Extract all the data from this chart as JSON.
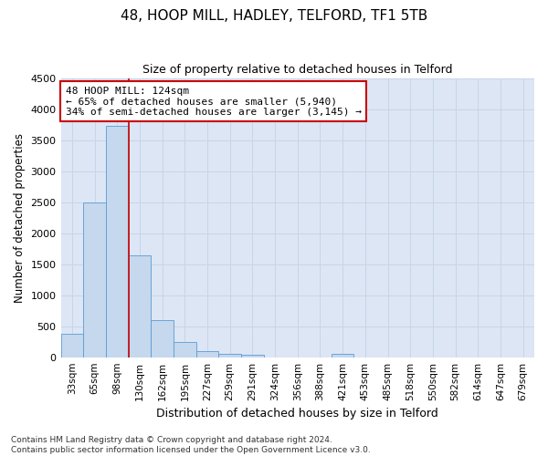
{
  "title1": "48, HOOP MILL, HADLEY, TELFORD, TF1 5TB",
  "title2": "Size of property relative to detached houses in Telford",
  "xlabel": "Distribution of detached houses by size in Telford",
  "ylabel": "Number of detached properties",
  "categories": [
    "33sqm",
    "65sqm",
    "98sqm",
    "130sqm",
    "162sqm",
    "195sqm",
    "227sqm",
    "259sqm",
    "291sqm",
    "324sqm",
    "356sqm",
    "388sqm",
    "421sqm",
    "453sqm",
    "485sqm",
    "518sqm",
    "550sqm",
    "582sqm",
    "614sqm",
    "647sqm",
    "679sqm"
  ],
  "values": [
    380,
    2500,
    3730,
    1640,
    600,
    240,
    100,
    60,
    40,
    0,
    0,
    0,
    60,
    0,
    0,
    0,
    0,
    0,
    0,
    0,
    0
  ],
  "bar_color": "#c5d8ed",
  "bar_edge_color": "#5b9bd5",
  "vline_x_idx": 3,
  "vline_color": "#cc0000",
  "annotation_text": "48 HOOP MILL: 124sqm\n← 65% of detached houses are smaller (5,940)\n34% of semi-detached houses are larger (3,145) →",
  "annotation_box_color": "#ffffff",
  "annotation_box_edge": "#cc0000",
  "ylim": [
    0,
    4500
  ],
  "yticks": [
    0,
    500,
    1000,
    1500,
    2000,
    2500,
    3000,
    3500,
    4000,
    4500
  ],
  "grid_color": "#c8d4e8",
  "background_color": "#dce6f5",
  "fig_background": "#ffffff",
  "footnote": "Contains HM Land Registry data © Crown copyright and database right 2024.\nContains public sector information licensed under the Open Government Licence v3.0."
}
